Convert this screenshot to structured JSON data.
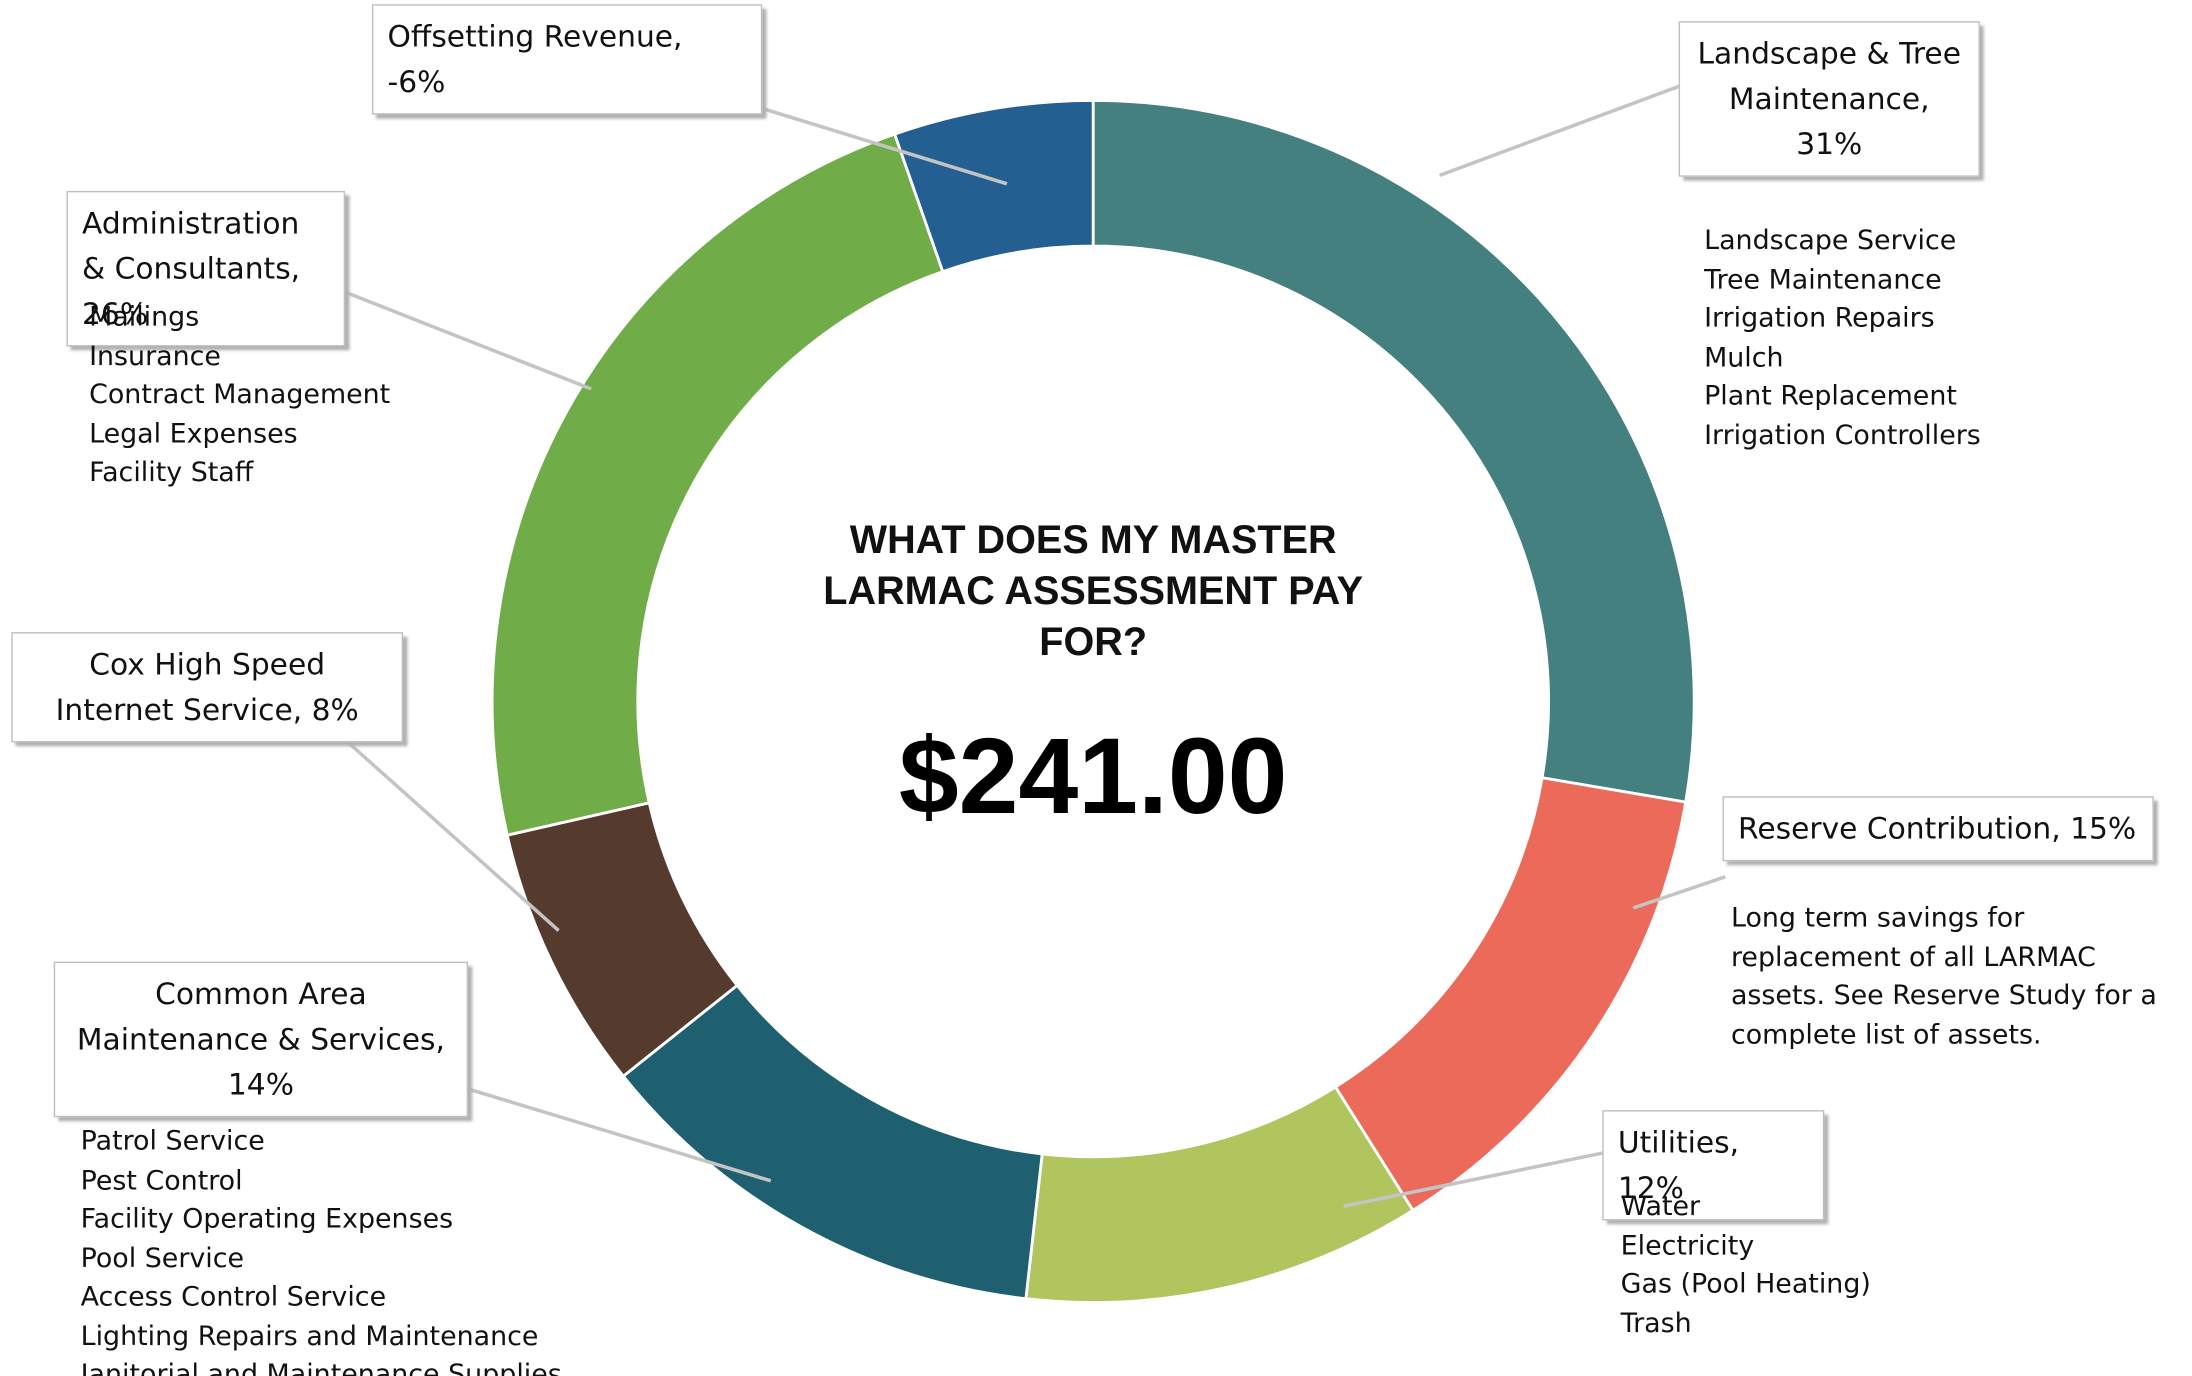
{
  "chart_data": {
    "type": "donut",
    "title": "WHAT DOES MY MASTER LARMAC ASSESSMENT PAY FOR?",
    "center_value": "$241.00",
    "categories": [
      "Landscape & Tree Maintenance, 31%",
      "Reserve Contribution, 15%",
      "Utilities, 12%",
      "Common Area Maintenance & Services, 14%",
      "Cox High Speed Internet Service, 8%",
      "Administration & Consultants, 26%",
      "Offsetting Revenue, -6%"
    ],
    "values": [
      31,
      15,
      12,
      14,
      8,
      26,
      -6
    ],
    "colors": [
      "#44807f",
      "#ec6a5a",
      "#b1c55f",
      "#1f6070",
      "#553a2e",
      "#70ac48",
      "#245f91"
    ],
    "details": [
      [
        "Landscape Service",
        "Tree Maintenance",
        "Irrigation Repairs",
        "Mulch",
        "Plant Replacement",
        "Irrigation Controllers"
      ],
      [
        "Long term savings for replacement of all LARMAC assets. See Reserve Study for a complete list of assets."
      ],
      [
        "Water",
        "Electricity",
        "Gas (Pool Heating)",
        "Trash"
      ],
      [
        "Patrol Service",
        "Pest Control",
        "Facility Operating Expenses",
        "Pool Service",
        "Access Control Service",
        "Lighting Repairs and Maintenance",
        "Janitorial and Maintenance Supplies"
      ],
      [],
      [
        "Mailings",
        "Insurance",
        "Contract Management",
        "Legal Expenses",
        "Facility Staff"
      ],
      []
    ]
  }
}
